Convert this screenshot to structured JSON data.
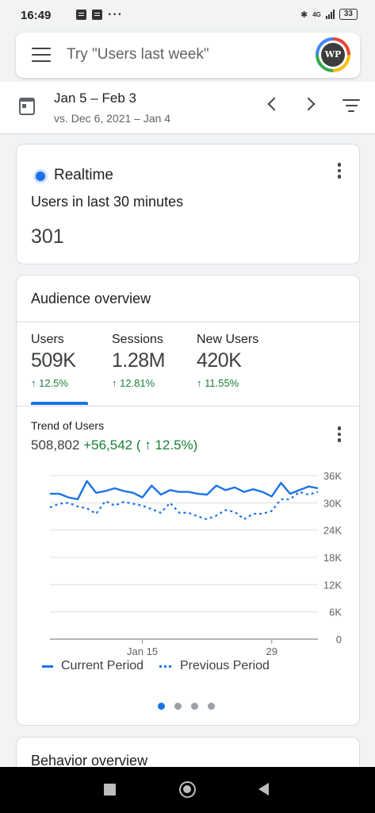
{
  "status_bar": {
    "time": "16:49",
    "network": "4G",
    "battery": "33"
  },
  "search": {
    "placeholder": "Try \"Users last week\"",
    "avatar_text": "WP"
  },
  "date_range": {
    "primary": "Jan 5 – Feb 3",
    "compare": "vs. Dec 6, 2021 – Jan 4"
  },
  "realtime": {
    "title": "Realtime",
    "subtitle": "Users in last 30 minutes",
    "count": "301"
  },
  "audience": {
    "title": "Audience overview",
    "metrics": [
      {
        "label": "Users",
        "value": "509K",
        "delta": "↑ 12.5%"
      },
      {
        "label": "Sessions",
        "value": "1.28M",
        "delta": "↑ 12.81%"
      },
      {
        "label": "New Users",
        "value": "420K",
        "delta": "↑ 11.55%"
      }
    ],
    "trend_title": "Trend of Users",
    "trend_total": "508,802",
    "trend_change": "+56,542 ( ↑ 12.5%)",
    "legend_current": "Current Period",
    "legend_previous": "Previous Period",
    "pager_active_index": 0
  },
  "behavior": {
    "title": "Behavior overview"
  },
  "colors": {
    "accent": "#1a73e8",
    "positive": "#188038"
  },
  "chart_data": {
    "type": "line",
    "x_tick_labels": [
      "Jan 15",
      "29"
    ],
    "x_tick_days": [
      10,
      24
    ],
    "y_ticks": [
      "0",
      "6K",
      "12K",
      "18K",
      "24K",
      "30K",
      "36K"
    ],
    "ylim": [
      0,
      36000
    ],
    "legend_placement": "bottom",
    "grid": true,
    "series": [
      {
        "name": "Current Period",
        "style": "solid",
        "values": [
          32000,
          32000,
          31200,
          30800,
          34800,
          32200,
          32600,
          33200,
          32600,
          32200,
          31200,
          33800,
          31800,
          32800,
          32400,
          32400,
          32000,
          31800,
          33800,
          32800,
          33400,
          32400,
          33000,
          32400,
          31400,
          34400,
          32000,
          32800,
          33600,
          33200
        ]
      },
      {
        "name": "Previous Period",
        "style": "dotted",
        "values": [
          29000,
          29800,
          30000,
          29200,
          28800,
          27600,
          30400,
          29400,
          30200,
          29800,
          29400,
          28600,
          27800,
          30000,
          27800,
          27800,
          27000,
          26400,
          27200,
          28400,
          28000,
          26400,
          27600,
          27600,
          28200,
          30800,
          30800,
          32400,
          31800,
          32400
        ]
      }
    ]
  }
}
